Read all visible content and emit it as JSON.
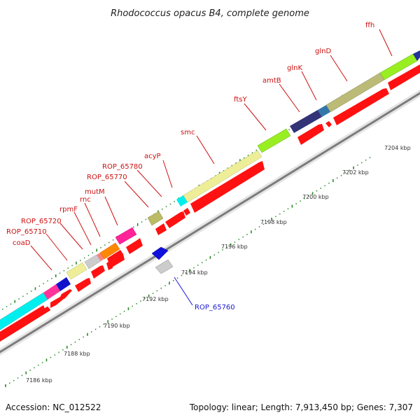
{
  "title": "Rhodococcus opacus B4, complete genome",
  "footer": {
    "accession": "Accession: NC_012522",
    "topology": "Topology: linear; Length: 7,913,450 bp; Genes: 7,307"
  },
  "colors": {
    "gene_label": "#cc1111",
    "highlight_label": "#1a1ad0",
    "cds_arrow": "#ff0000",
    "backbone": "#888888",
    "tick": "#2a8a2a"
  },
  "axis": {
    "unit": "kbp",
    "ticks": [
      7186,
      7188,
      7190,
      7192,
      7194,
      7196,
      7198,
      7200,
      7202,
      7204
    ],
    "tick_labels": [
      "7186 kbp",
      "7188 kbp",
      "7190 kbp",
      "7192 kbp",
      "7194 kbp",
      "7196 kbp",
      "7198 kbp",
      "7200 kbp",
      "7202 kbp",
      "7204 kbp"
    ]
  },
  "genes": [
    {
      "name": "coaD",
      "color": "#eeee99"
    },
    {
      "name": "ROP_65710",
      "color": "#0000cc"
    },
    {
      "name": "ROP_65720",
      "color": "#cccccc"
    },
    {
      "name": "rpmF",
      "color": "#cccccc"
    },
    {
      "name": "rnc",
      "color": "#ff8800"
    },
    {
      "name": "mutM",
      "color": "#ff3399"
    },
    {
      "name": "ROP_65770",
      "color": "#bbbb66"
    },
    {
      "name": "ROP_65780",
      "color": "#00dddd"
    },
    {
      "name": "acyP",
      "color": "#00dddd"
    },
    {
      "name": "smc",
      "color": "#eeee99"
    },
    {
      "name": "ftsY",
      "color": "#99ee33"
    },
    {
      "name": "amtB",
      "color": "#333377"
    },
    {
      "name": "glnK",
      "color": "#3377aa"
    },
    {
      "name": "glnD",
      "color": "#bbbb77"
    },
    {
      "name": "ffh",
      "color": "#99ee33"
    }
  ],
  "highlight_gene": {
    "name": "ROP_65760",
    "color": "#1a1ad0"
  }
}
